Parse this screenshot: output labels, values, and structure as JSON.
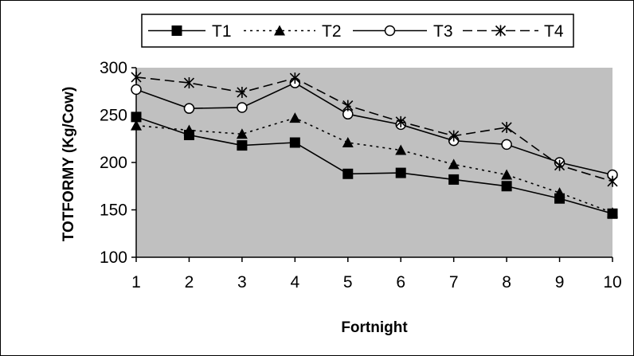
{
  "chart_data": {
    "type": "line",
    "x": [
      1,
      2,
      3,
      4,
      5,
      6,
      7,
      8,
      9,
      10
    ],
    "x_tick_labels": [
      "1",
      "2",
      "3",
      "4",
      "5",
      "6",
      "7",
      "8",
      "9",
      "10"
    ],
    "y_ticks": [
      100,
      150,
      200,
      250,
      300
    ],
    "y_tick_labels": [
      "100",
      "150",
      "200",
      "250",
      "300"
    ],
    "ylim": [
      100,
      300
    ],
    "xlabel": "Fortnight",
    "ylabel": "TOTFORMY (Kg/Cow)",
    "title": "",
    "grid": false,
    "legend_position": "top",
    "plot_background": "#c0c0c0",
    "series": [
      {
        "name": "T1",
        "marker": "square",
        "line": "solid",
        "color": "#000000",
        "values": [
          248,
          229,
          218,
          221,
          188,
          189,
          182,
          175,
          162,
          146
        ]
      },
      {
        "name": "T2",
        "marker": "triangle",
        "line": "dotted",
        "color": "#000000",
        "values": [
          239,
          234,
          230,
          247,
          221,
          213,
          198,
          187,
          168,
          147
        ]
      },
      {
        "name": "T3",
        "marker": "circle-open",
        "line": "solid",
        "color": "#000000",
        "values": [
          277,
          257,
          258,
          284,
          251,
          240,
          223,
          219,
          200,
          187
        ]
      },
      {
        "name": "T4",
        "marker": "asterisk",
        "line": "dashed",
        "color": "#000000",
        "values": [
          290,
          284,
          274,
          289,
          260,
          243,
          228,
          237,
          197,
          180
        ]
      }
    ]
  }
}
